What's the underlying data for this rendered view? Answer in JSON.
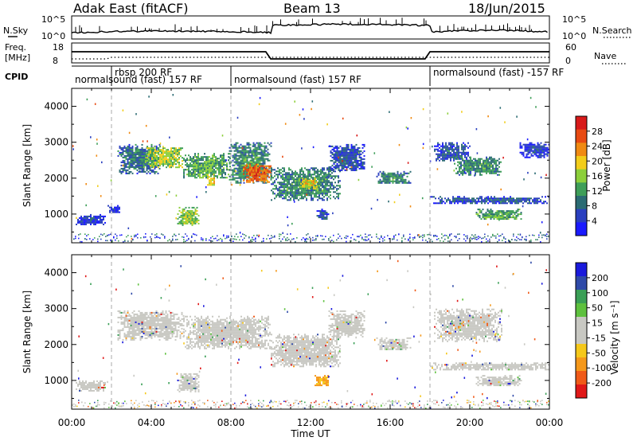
{
  "header": {
    "station": "Adak East (fitACF)",
    "beam": "Beam 13",
    "date": "18/Jun/2015"
  },
  "panel_noise": {
    "left_label": "N.Sky",
    "right_label": "N.Search",
    "left_ticks": [
      "10^5",
      "10^0"
    ],
    "right_ticks": [
      "10^5",
      "10^0"
    ]
  },
  "panel_freq": {
    "left_label_line1": "Freq.",
    "left_label_line2": "[MHz]",
    "right_label": "Nave",
    "left_ticks": [
      "18",
      "8"
    ],
    "right_ticks": [
      "60",
      "0"
    ]
  },
  "panel_cpid": {
    "label": "CPID",
    "segments": [
      {
        "text": "normalsound (fast) 157 RF",
        "start_h": 0,
        "end_h": 2,
        "row": 2
      },
      {
        "text": "rbsp 200 RF",
        "start_h": 2,
        "end_h": 8,
        "row": 1
      },
      {
        "text": "normalsound (fast) 157 RF",
        "start_h": 8,
        "end_h": 18,
        "row": 2
      },
      {
        "text": "normalsound (fast) -157 RF",
        "start_h": 18,
        "end_h": 24,
        "row": 2
      }
    ]
  },
  "colors": {
    "power": [
      "#1a1aff",
      "#2a3fbf",
      "#2b6b73",
      "#3e9e58",
      "#8ccf3a",
      "#f2cd1a",
      "#f08a12",
      "#e84a12",
      "#d81a1a"
    ],
    "velocity": [
      "#e01818",
      "#f05a18",
      "#f5981a",
      "#f5c81a",
      "#c8c8c2",
      "#c8c8c2",
      "#5ec13e",
      "#3a9f56",
      "#2f4aa8",
      "#1a1adc"
    ],
    "ground_scatter": "#c8c8c2"
  },
  "chart_data": [
    {
      "type": "heatmap",
      "name": "power",
      "ylabel": "Slant Range [km]",
      "xlim": [
        0,
        24
      ],
      "ylim": [
        200,
        4500
      ],
      "y_ticks": [
        1000,
        2000,
        3000,
        4000
      ],
      "colorbar": {
        "label": "Power [dB]",
        "ticks": [
          4,
          8,
          12,
          16,
          20,
          24,
          28
        ],
        "range": [
          0,
          32
        ]
      },
      "echo_regions": [
        {
          "t0": 0.2,
          "t1": 1.7,
          "r0": 700,
          "r1": 1000,
          "v": 6
        },
        {
          "t0": 1.8,
          "t1": 2.4,
          "r0": 1050,
          "r1": 1250,
          "v": 5
        },
        {
          "t0": 2.3,
          "t1": 4.4,
          "r0": 2150,
          "r1": 2950,
          "v": 10
        },
        {
          "t0": 3.6,
          "t1": 5.6,
          "r0": 2300,
          "r1": 2900,
          "v": 18
        },
        {
          "t0": 5.3,
          "t1": 6.4,
          "r0": 700,
          "r1": 1200,
          "v": 17
        },
        {
          "t0": 5.6,
          "t1": 8.0,
          "r0": 2000,
          "r1": 2700,
          "v": 14
        },
        {
          "t0": 6.8,
          "t1": 7.2,
          "r0": 1800,
          "r1": 2100,
          "v": 20
        },
        {
          "t0": 7.9,
          "t1": 10.0,
          "r0": 1850,
          "r1": 3000,
          "v": 12
        },
        {
          "t0": 8.6,
          "t1": 10.0,
          "r0": 1900,
          "r1": 2400,
          "v": 27
        },
        {
          "t0": 10.0,
          "t1": 13.5,
          "r0": 1400,
          "r1": 2300,
          "v": 12
        },
        {
          "t0": 11.4,
          "t1": 12.3,
          "r0": 1700,
          "r1": 2000,
          "v": 20
        },
        {
          "t0": 12.3,
          "t1": 12.9,
          "r0": 850,
          "r1": 1150,
          "v": 8
        },
        {
          "t0": 12.9,
          "t1": 14.7,
          "r0": 2200,
          "r1": 2950,
          "v": 8
        },
        {
          "t0": 15.3,
          "t1": 17.0,
          "r0": 1850,
          "r1": 2200,
          "v": 12
        },
        {
          "t0": 18.2,
          "t1": 20.0,
          "r0": 2500,
          "r1": 3000,
          "v": 8
        },
        {
          "t0": 19.2,
          "t1": 21.6,
          "r0": 2100,
          "r1": 2600,
          "v": 12
        },
        {
          "t0": 18.0,
          "t1": 24.0,
          "r0": 1300,
          "r1": 1500,
          "v": 8
        },
        {
          "t0": 20.3,
          "t1": 22.6,
          "r0": 850,
          "r1": 1150,
          "v": 14
        },
        {
          "t0": 22.5,
          "t1": 24.0,
          "r0": 2600,
          "r1": 3000,
          "v": 6
        }
      ]
    },
    {
      "type": "heatmap",
      "name": "velocity",
      "xlabel": "Time UT",
      "ylabel": "Slant Range [km]",
      "xlim": [
        0,
        24
      ],
      "ylim": [
        200,
        4500
      ],
      "x_tick_labels": [
        "00:00",
        "04:00",
        "08:00",
        "12:00",
        "16:00",
        "20:00",
        "00:00"
      ],
      "y_ticks": [
        1000,
        2000,
        3000,
        4000
      ],
      "colorbar": {
        "label": "Velocity [m s⁻¹]",
        "ticks": [
          200,
          100,
          50,
          15,
          -15,
          -50,
          -100,
          -200
        ]
      },
      "echo_regions": [
        {
          "t0": 0.2,
          "t1": 1.7,
          "r0": 700,
          "r1": 1000,
          "gs": true
        },
        {
          "t0": 2.3,
          "t1": 5.6,
          "r0": 2150,
          "r1": 2950,
          "gs": true
        },
        {
          "t0": 5.3,
          "t1": 6.4,
          "r0": 700,
          "r1": 1200,
          "gs": true
        },
        {
          "t0": 5.6,
          "t1": 10.0,
          "r0": 1900,
          "r1": 2800,
          "gs": true
        },
        {
          "t0": 10.0,
          "t1": 13.5,
          "r0": 1400,
          "r1": 2300,
          "gs": true
        },
        {
          "t0": 12.2,
          "t1": 12.9,
          "r0": 850,
          "r1": 1150,
          "gs": false,
          "v": -60
        },
        {
          "t0": 12.9,
          "t1": 14.7,
          "r0": 2200,
          "r1": 2950,
          "gs": true
        },
        {
          "t0": 15.3,
          "t1": 17.0,
          "r0": 1850,
          "r1": 2200,
          "gs": true
        },
        {
          "t0": 18.2,
          "t1": 21.6,
          "r0": 2100,
          "r1": 3000,
          "gs": true
        },
        {
          "t0": 18.0,
          "t1": 24.0,
          "r0": 1300,
          "r1": 1500,
          "gs": true
        },
        {
          "t0": 20.3,
          "t1": 22.6,
          "r0": 850,
          "r1": 1150,
          "gs": true
        }
      ]
    }
  ]
}
